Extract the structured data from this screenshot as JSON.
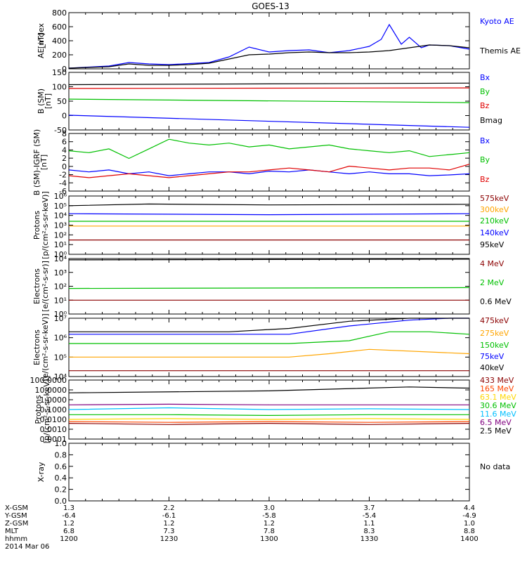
{
  "title": "GOES-13",
  "chart_data": [
    {
      "type": "line",
      "ylabel": "AE_index [nT]",
      "ylim": [
        0,
        800
      ],
      "yticks": [
        "0",
        "200",
        "400",
        "600",
        "800"
      ],
      "x_range": [
        0,
        1
      ],
      "series": [
        {
          "name": "Kyoto AE",
          "color": "#0000ff",
          "x": [
            0,
            0.05,
            0.1,
            0.15,
            0.2,
            0.25,
            0.3,
            0.35,
            0.4,
            0.45,
            0.5,
            0.55,
            0.6,
            0.65,
            0.7,
            0.75,
            0.78,
            0.8,
            0.83,
            0.85,
            0.88,
            0.9,
            0.95,
            1
          ],
          "y": [
            10,
            25,
            40,
            90,
            70,
            60,
            75,
            90,
            170,
            310,
            240,
            260,
            270,
            230,
            260,
            320,
            420,
            630,
            350,
            450,
            300,
            340,
            330,
            280
          ]
        },
        {
          "name": "Themis AE",
          "color": "#000000",
          "x": [
            0,
            0.05,
            0.1,
            0.15,
            0.2,
            0.25,
            0.3,
            0.35,
            0.4,
            0.45,
            0.5,
            0.55,
            0.6,
            0.65,
            0.7,
            0.75,
            0.8,
            0.85,
            0.9,
            0.95,
            1
          ],
          "y": [
            10,
            20,
            30,
            70,
            50,
            50,
            60,
            80,
            140,
            200,
            210,
            230,
            240,
            230,
            230,
            240,
            260,
            300,
            340,
            330,
            300
          ]
        }
      ]
    },
    {
      "type": "line",
      "ylabel": "B (SM) [nT]",
      "ylim": [
        -65,
        150
      ],
      "yticks": [
        "-50",
        "0",
        "50",
        "100",
        "150"
      ],
      "series": [
        {
          "name": "Bx",
          "color": "#0000ff",
          "x": [
            0,
            1
          ],
          "y": [
            -10,
            -55
          ]
        },
        {
          "name": "By",
          "color": "#00c000",
          "x": [
            0,
            1
          ],
          "y": [
            50,
            37
          ]
        },
        {
          "name": "Bz",
          "color": "#e00000",
          "x": [
            0,
            1
          ],
          "y": [
            90,
            92
          ]
        },
        {
          "name": "Bmag",
          "color": "#000000",
          "x": [
            0,
            1
          ],
          "y": [
            104,
            110
          ]
        }
      ]
    },
    {
      "type": "line",
      "ylabel": "B (SM)-IGRF (SM) [nT]",
      "ylim": [
        -7,
        8
      ],
      "yticks": [
        "-6",
        "-4",
        "-2",
        "0",
        "2",
        "4",
        "6",
        "8"
      ],
      "series": [
        {
          "name": "Bx",
          "color": "#0000ff",
          "x": [
            0,
            0.05,
            0.1,
            0.15,
            0.2,
            0.25,
            0.3,
            0.35,
            0.4,
            0.45,
            0.5,
            0.55,
            0.6,
            0.65,
            0.7,
            0.75,
            0.8,
            0.85,
            0.9,
            0.95,
            1
          ],
          "y": [
            -1.5,
            -2,
            -1.5,
            -2.5,
            -2,
            -3,
            -2.5,
            -2,
            -2,
            -2.5,
            -1.8,
            -2,
            -1.5,
            -2,
            -2.5,
            -2,
            -2.5,
            -2.5,
            -3,
            -2.8,
            -2.5
          ]
        },
        {
          "name": "By",
          "color": "#00c000",
          "x": [
            0,
            0.05,
            0.1,
            0.15,
            0.2,
            0.25,
            0.3,
            0.35,
            0.4,
            0.45,
            0.5,
            0.55,
            0.6,
            0.65,
            0.7,
            0.75,
            0.8,
            0.85,
            0.9,
            0.95,
            1
          ],
          "y": [
            3.5,
            3,
            4,
            1.5,
            4,
            6.5,
            5.5,
            5,
            5.5,
            4.5,
            5,
            4,
            4.5,
            5,
            4,
            3.5,
            3,
            3.5,
            2,
            2.5,
            3
          ]
        },
        {
          "name": "Bz",
          "color": "#e00000",
          "x": [
            0,
            0.05,
            0.1,
            0.15,
            0.2,
            0.25,
            0.3,
            0.35,
            0.4,
            0.45,
            0.5,
            0.55,
            0.6,
            0.65,
            0.7,
            0.75,
            0.8,
            0.85,
            0.9,
            0.95,
            1
          ],
          "y": [
            -3,
            -3.5,
            -3,
            -2.5,
            -3,
            -3.5,
            -3,
            -2.5,
            -2,
            -2,
            -1.5,
            -1,
            -1.5,
            -2,
            -0.5,
            -1,
            -1.5,
            -1,
            -1,
            -1.5,
            0
          ]
        }
      ]
    },
    {
      "type": "line",
      "ylabel": "Protons [p/(cm²-s-sr-keV)]",
      "log": true,
      "ylim": [
        1,
        1000000
      ],
      "yticks": [
        "10⁰",
        "10¹",
        "10²",
        "10³",
        "10⁴",
        "10⁵",
        "10⁶"
      ],
      "series": [
        {
          "name": "575keV",
          "color": "#8b0000",
          "x": [
            0,
            1
          ],
          "y": [
            30,
            30
          ]
        },
        {
          "name": "300keV",
          "color": "#ffa500",
          "x": [
            0,
            1
          ],
          "y": [
            800,
            800
          ]
        },
        {
          "name": "210keV",
          "color": "#00c000",
          "x": [
            0,
            1
          ],
          "y": [
            2500,
            2500
          ]
        },
        {
          "name": "140keV",
          "color": "#0000ff",
          "x": [
            0,
            0.5,
            1
          ],
          "y": [
            15000,
            12000,
            15000
          ]
        },
        {
          "name": "95keV",
          "color": "#000000",
          "x": [
            0,
            0.2,
            0.5,
            1
          ],
          "y": [
            100000,
            150000,
            120000,
            140000
          ]
        }
      ]
    },
    {
      "type": "line",
      "ylabel": "Electrons [e/(cm²-s-sr)]",
      "log": true,
      "ylim": [
        1,
        10000
      ],
      "yticks": [
        "10⁰",
        "10¹",
        "10²",
        "10³",
        "10⁴"
      ],
      "series": [
        {
          "name": "4 MeV",
          "color": "#8b0000",
          "x": [
            0,
            1
          ],
          "y": [
            10,
            10
          ]
        },
        {
          "name": "2 MeV",
          "color": "#00c000",
          "x": [
            0,
            1
          ],
          "y": [
            70,
            80
          ]
        },
        {
          "name": "0.6 MeV",
          "color": "#000000",
          "x": [
            0,
            1
          ],
          "y": [
            8000,
            9000
          ]
        }
      ]
    },
    {
      "type": "line",
      "ylabel": "Electrons [e/(cm²-s-sr-keV)]",
      "log": true,
      "ylim": [
        10000,
        10000000
      ],
      "yticks": [
        "10⁴",
        "10⁵",
        "10⁶",
        "10⁷"
      ],
      "series": [
        {
          "name": "475keV",
          "color": "#8b0000",
          "x": [
            0,
            1
          ],
          "y": [
            20000,
            20000
          ]
        },
        {
          "name": "275keV",
          "color": "#ffa500",
          "x": [
            0,
            0.55,
            0.65,
            0.75,
            1
          ],
          "y": [
            100000,
            100000,
            150000,
            250000,
            150000
          ]
        },
        {
          "name": "150keV",
          "color": "#00c000",
          "x": [
            0,
            0.55,
            0.7,
            0.8,
            0.9,
            1
          ],
          "y": [
            500000,
            500000,
            700000,
            2000000,
            2000000,
            1500000
          ]
        },
        {
          "name": "75keV",
          "color": "#0000ff",
          "x": [
            0,
            0.4,
            0.55,
            0.7,
            0.85,
            0.95,
            1
          ],
          "y": [
            1500000,
            1500000,
            1500000,
            4000000,
            8000000,
            10000000,
            10000000
          ]
        },
        {
          "name": "40keV",
          "color": "#000000",
          "x": [
            0,
            0.4,
            0.55,
            0.7,
            0.85,
            1
          ],
          "y": [
            2000000,
            2000000,
            3000000,
            7000000,
            10000000,
            10000000
          ]
        }
      ]
    },
    {
      "type": "line",
      "ylabel": "Protons [p/(cm²-s-sr-keV)]",
      "log": true,
      "ylim": [
        0.0001,
        100
      ],
      "yticks": [
        "0.0001",
        "0.0010",
        "0.0100",
        "0.1000",
        "1.0000",
        "10.0000",
        "100.0000"
      ],
      "series": [
        {
          "name": "433 MeV",
          "color": "#8b0000",
          "x": [
            0,
            0.25,
            0.5,
            0.75,
            1
          ],
          "y": [
            0.004,
            0.003,
            0.004,
            0.003,
            0.004
          ]
        },
        {
          "name": "165 MeV",
          "color": "#ff4500",
          "x": [
            0,
            0.25,
            0.5,
            0.75,
            1
          ],
          "y": [
            0.006,
            0.005,
            0.006,
            0.005,
            0.006
          ]
        },
        {
          "name": "63.1 MeV",
          "color": "#ffd700",
          "x": [
            0,
            0.25,
            0.5,
            0.75,
            1
          ],
          "y": [
            0.01,
            0.012,
            0.01,
            0.012,
            0.01
          ]
        },
        {
          "name": "30.6 MeV",
          "color": "#00c000",
          "x": [
            0,
            0.25,
            0.5,
            0.75,
            1
          ],
          "y": [
            0.03,
            0.03,
            0.025,
            0.03,
            0.03
          ]
        },
        {
          "name": "11.6 MeV",
          "color": "#00bfff",
          "x": [
            0,
            0.25,
            0.5,
            0.75,
            1
          ],
          "y": [
            0.1,
            0.15,
            0.1,
            0.12,
            0.1
          ]
        },
        {
          "name": "6.5 MeV",
          "color": "#800080",
          "x": [
            0,
            0.25,
            0.5,
            0.75,
            1
          ],
          "y": [
            0.3,
            0.35,
            0.3,
            0.3,
            0.3
          ]
        },
        {
          "name": "2.5 MeV",
          "color": "#000000",
          "x": [
            0,
            0.5,
            0.85,
            1
          ],
          "y": [
            5,
            8,
            20,
            15
          ]
        }
      ]
    },
    {
      "type": "line",
      "ylabel": "X-ray",
      "ylim": [
        0,
        1
      ],
      "yticks": [
        "0.0",
        "0.2",
        "0.4",
        "0.6",
        "0.8",
        "1.0"
      ],
      "series": [
        {
          "name": "No data",
          "color": "#000000",
          "x": [],
          "y": []
        }
      ]
    }
  ],
  "x_axis": {
    "row_labels": [
      "X-GSM",
      "Y-GSM",
      "Z-GSM",
      "MLT",
      "hhmm",
      "2014 Mar 06"
    ],
    "ticks": [
      {
        "x": 0,
        "values": [
          "1.3",
          "-6.4",
          "1.2",
          "6.8",
          "1200"
        ]
      },
      {
        "x": 0.25,
        "values": [
          "2.2",
          "-6.1",
          "1.2",
          "7.3",
          "1230"
        ]
      },
      {
        "x": 0.5,
        "values": [
          "3.0",
          "-5.8",
          "1.2",
          "7.8",
          "1300"
        ]
      },
      {
        "x": 0.75,
        "values": [
          "3.7",
          "-5.4",
          "1.1",
          "8.3",
          "1330"
        ]
      },
      {
        "x": 1,
        "values": [
          "4.4",
          "-4.9",
          "1.0",
          "8.8",
          "1400"
        ]
      }
    ]
  }
}
